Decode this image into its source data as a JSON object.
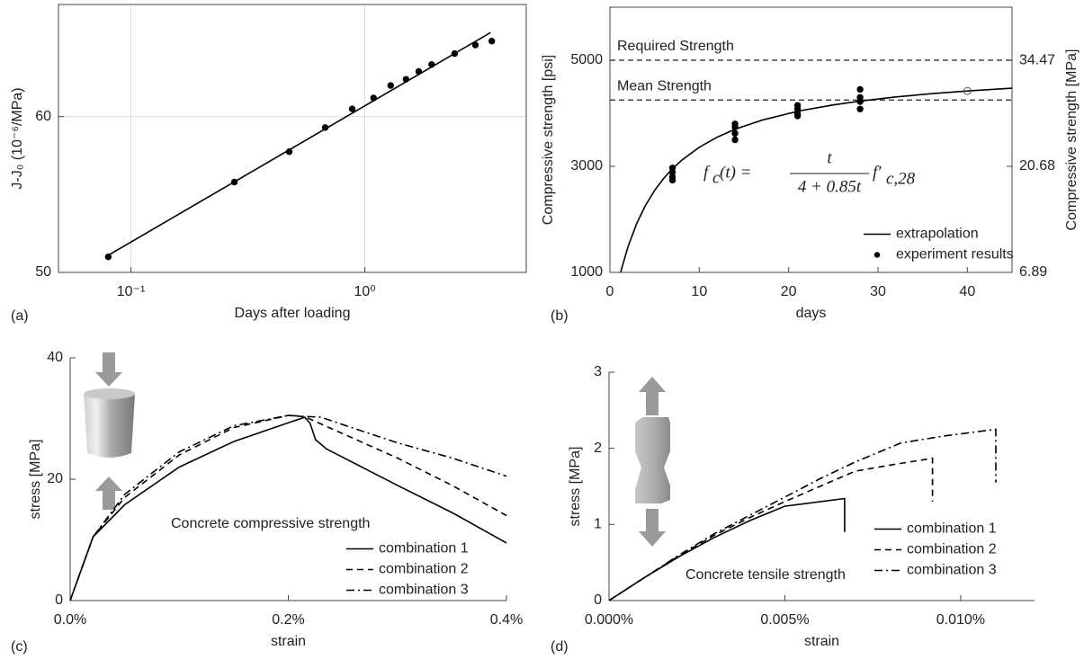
{
  "chart_data": [
    {
      "type": "line",
      "panel_label": "(a)",
      "xlabel": "Days after loading",
      "ylabel": "J-J₀ (10⁻⁶/MPa)",
      "xscale": "log",
      "xlim": [
        0.049,
        4.9
      ],
      "ylim": [
        50,
        67.2
      ],
      "xticks": [
        {
          "value": 0.1,
          "label": "10⁻¹"
        },
        {
          "value": 1,
          "label": "10⁰"
        }
      ],
      "yticks": [
        50,
        60
      ],
      "grid": true,
      "box": true,
      "series": [
        {
          "x": [
            0.08,
            0.277,
            0.475,
            0.677,
            0.883,
            1.09,
            1.29,
            1.5,
            1.7,
            1.93,
            2.42,
            2.97,
            3.49
          ],
          "values": [
            51.0,
            55.8,
            57.75,
            59.3,
            60.5,
            61.2,
            62.0,
            62.4,
            62.9,
            63.35,
            64.05,
            64.6,
            64.85
          ],
          "marker": "dot",
          "line_style": "none",
          "color": "#000000"
        },
        {
          "x": [
            0.08,
            3.45
          ],
          "values": [
            51.1,
            65.4
          ],
          "marker": "none",
          "line_style": "solid",
          "color": "#000000"
        }
      ]
    },
    {
      "type": "line",
      "panel_label": "(b)",
      "xlabel": "days",
      "ylabel": "Compressive strength [psi]",
      "y2label": "Compressive strength [MPa]",
      "xlim": [
        0,
        45
      ],
      "ylim": [
        1000,
        6000
      ],
      "y2lim": [
        6.89,
        41.37
      ],
      "xticks": [
        0,
        10,
        20,
        30,
        40
      ],
      "yticks": [
        1000,
        3000,
        5000
      ],
      "y2ticks": [
        6.89,
        20.68,
        34.47
      ],
      "grid": false,
      "box": true,
      "legend": "lower right",
      "hlines": [
        {
          "label": "Required Strength",
          "value": 5000
        },
        {
          "label": "Mean Strength",
          "value": 4250
        }
      ],
      "formula": {
        "lhs": "f",
        "lhs_sub": "c",
        "lhs_arg": "(t) =",
        "numerator": "t",
        "denominator": "4 + 0.85t",
        "rhs": "f′",
        "rhs_sub": "c,28"
      },
      "series": [
        {
          "name": "extrapolation",
          "x": [
            1.2,
            2,
            3,
            4,
            5,
            6,
            7,
            8,
            10,
            12,
            14,
            17,
            21,
            25,
            28,
            32,
            36,
            40,
            45
          ],
          "values": [
            1004,
            1474,
            1924,
            2270,
            2545,
            2769,
            2955,
            3111,
            3360,
            3549,
            3698,
            3870,
            4037,
            4158,
            4230,
            4308,
            4370,
            4421,
            4473
          ],
          "marker": "none",
          "line_style": "solid",
          "color": "#000000"
        },
        {
          "name": "experiment results",
          "x": [
            7,
            7,
            7,
            7,
            14,
            14,
            14,
            14,
            21,
            21,
            21,
            21,
            28,
            28,
            28,
            28
          ],
          "values": [
            2970,
            2890,
            2800,
            2740,
            3800,
            3740,
            3620,
            3500,
            4150,
            4080,
            4000,
            3950,
            4450,
            4300,
            4220,
            4080
          ],
          "marker": "dot",
          "line_style": "none",
          "color": "#000000"
        },
        {
          "x": [
            40
          ],
          "values": [
            4421
          ],
          "marker": "open",
          "line_style": "none",
          "color": "#555555"
        }
      ]
    },
    {
      "type": "line",
      "panel_label": "(c)",
      "xlabel": "strain",
      "ylabel": "stress [MPa]",
      "annotation": "Concrete compressive strength",
      "xlim": [
        0,
        0.4
      ],
      "ylim": [
        0,
        40
      ],
      "xticks": [
        {
          "value": 0,
          "label": "0.0%"
        },
        {
          "value": 0.2,
          "label": "0.2%"
        },
        {
          "value": 0.4,
          "label": "0.4%"
        }
      ],
      "yticks": [
        0,
        20,
        40
      ],
      "grid": false,
      "box": false,
      "legend": "lower right",
      "series": [
        {
          "name": "combination 1",
          "x": [
            0,
            0.021,
            0.05,
            0.1,
            0.15,
            0.2,
            0.215,
            0.22,
            0.225,
            0.235,
            0.3,
            0.35,
            0.4
          ],
          "values": [
            0,
            10.5,
            15.8,
            22,
            26.2,
            29.3,
            30.2,
            29.2,
            26.5,
            25,
            19,
            14.5,
            9.5
          ],
          "marker": "none",
          "line_style": "solid",
          "color": "#000000"
        },
        {
          "name": "combination 2",
          "x": [
            0,
            0.021,
            0.05,
            0.1,
            0.15,
            0.2,
            0.215,
            0.25,
            0.3,
            0.35,
            0.4
          ],
          "values": [
            0,
            10.5,
            17,
            24,
            28.5,
            30.5,
            30.3,
            27.5,
            23.5,
            19,
            14
          ],
          "marker": "none",
          "line_style": "dashed",
          "color": "#000000"
        },
        {
          "name": "combination 3",
          "x": [
            0,
            0.021,
            0.05,
            0.1,
            0.15,
            0.2,
            0.23,
            0.25,
            0.3,
            0.35,
            0.4
          ],
          "values": [
            0,
            10.5,
            17.5,
            24.5,
            28.8,
            30.5,
            30.2,
            29,
            26,
            23.5,
            20.5
          ],
          "marker": "none",
          "line_style": "dashdot",
          "color": "#000000"
        }
      ]
    },
    {
      "type": "line",
      "panel_label": "(d)",
      "xlabel": "strain",
      "ylabel": "stress [MPa]",
      "annotation": "Concrete tensile strength",
      "xlim": [
        0,
        0.0121
      ],
      "ylim": [
        0,
        3
      ],
      "xticks": [
        {
          "value": 0,
          "label": "0.000%"
        },
        {
          "value": 0.005,
          "label": "0.005%"
        },
        {
          "value": 0.01,
          "label": "0.010%"
        }
      ],
      "yticks": [
        0,
        1,
        2,
        3
      ],
      "grid": false,
      "box": false,
      "legend": "center right",
      "series": [
        {
          "name": "combination 1",
          "x": [
            0,
            0.001,
            0.002,
            0.003,
            0.004,
            0.005,
            0.0067,
            0.0067
          ],
          "values": [
            0,
            0.3,
            0.58,
            0.83,
            1.05,
            1.24,
            1.34,
            0.9
          ],
          "marker": "none",
          "line_style": "solid",
          "color": "#000000"
        },
        {
          "name": "combination 2",
          "x": [
            0,
            0.001,
            0.002,
            0.003,
            0.004,
            0.005,
            0.006,
            0.007,
            0.008,
            0.0092,
            0.0092
          ],
          "values": [
            0,
            0.3,
            0.59,
            0.86,
            1.09,
            1.3,
            1.5,
            1.7,
            1.78,
            1.87,
            1.3
          ],
          "marker": "none",
          "line_style": "dashed",
          "color": "#000000"
        },
        {
          "name": "combination 3",
          "x": [
            0,
            0.001,
            0.002,
            0.003,
            0.004,
            0.005,
            0.006,
            0.007,
            0.0083,
            0.0095,
            0.011,
            0.011
          ],
          "values": [
            0,
            0.3,
            0.6,
            0.88,
            1.12,
            1.36,
            1.6,
            1.82,
            2.07,
            2.16,
            2.25,
            1.55
          ],
          "marker": "none",
          "line_style": "dashdot",
          "color": "#000000"
        }
      ]
    }
  ]
}
